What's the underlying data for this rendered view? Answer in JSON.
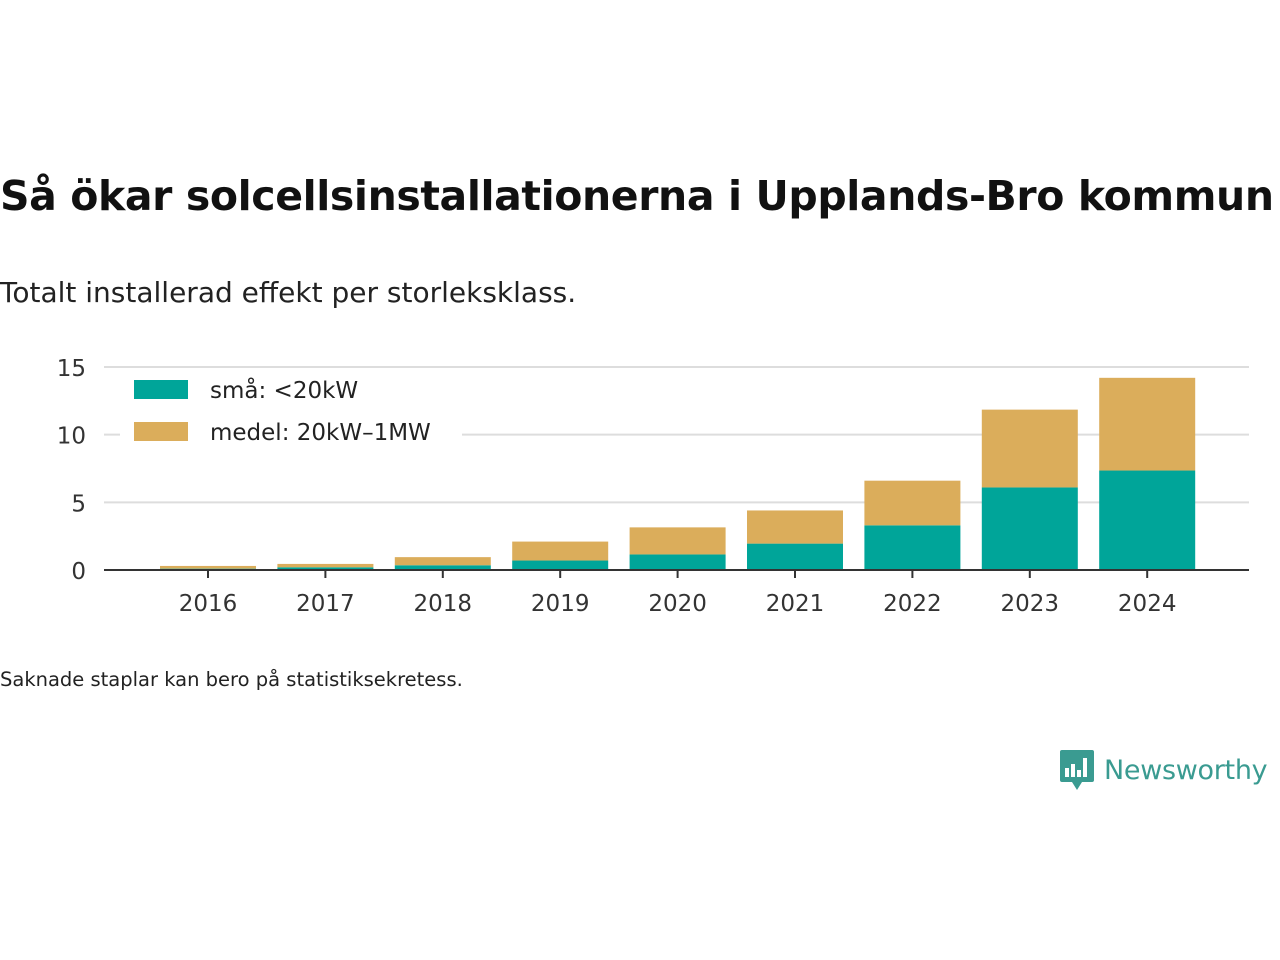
{
  "header": {
    "title": "Så ökar solcellsinstallationerna i Upplands-Bro kommun",
    "subtitle": "Totalt installerad effekt per storleksklass."
  },
  "footer": {
    "note": "Saknade staplar kan bero på statistiksekretess.",
    "brand": "Newsworthy"
  },
  "colors": {
    "small": "#00a599",
    "medium": "#dbad5b",
    "grid": "#dddddd",
    "axis": "#333333",
    "brand": "#3a9b91"
  },
  "chart_data": {
    "type": "bar",
    "stacked": true,
    "categories": [
      "2016",
      "2017",
      "2018",
      "2019",
      "2020",
      "2021",
      "2022",
      "2023",
      "2024"
    ],
    "series": [
      {
        "name": "små: <20kW",
        "values": [
          0.1,
          0.2,
          0.35,
          0.7,
          1.15,
          1.95,
          3.3,
          6.1,
          7.35
        ]
      },
      {
        "name": "medel: 20kW–1MW",
        "values": [
          0.2,
          0.25,
          0.6,
          1.4,
          2.0,
          2.45,
          3.3,
          5.75,
          6.85
        ]
      }
    ],
    "ylim": [
      0,
      15
    ],
    "yticks": [
      0,
      5,
      10,
      15
    ],
    "grid": true,
    "legend": "top-left"
  }
}
